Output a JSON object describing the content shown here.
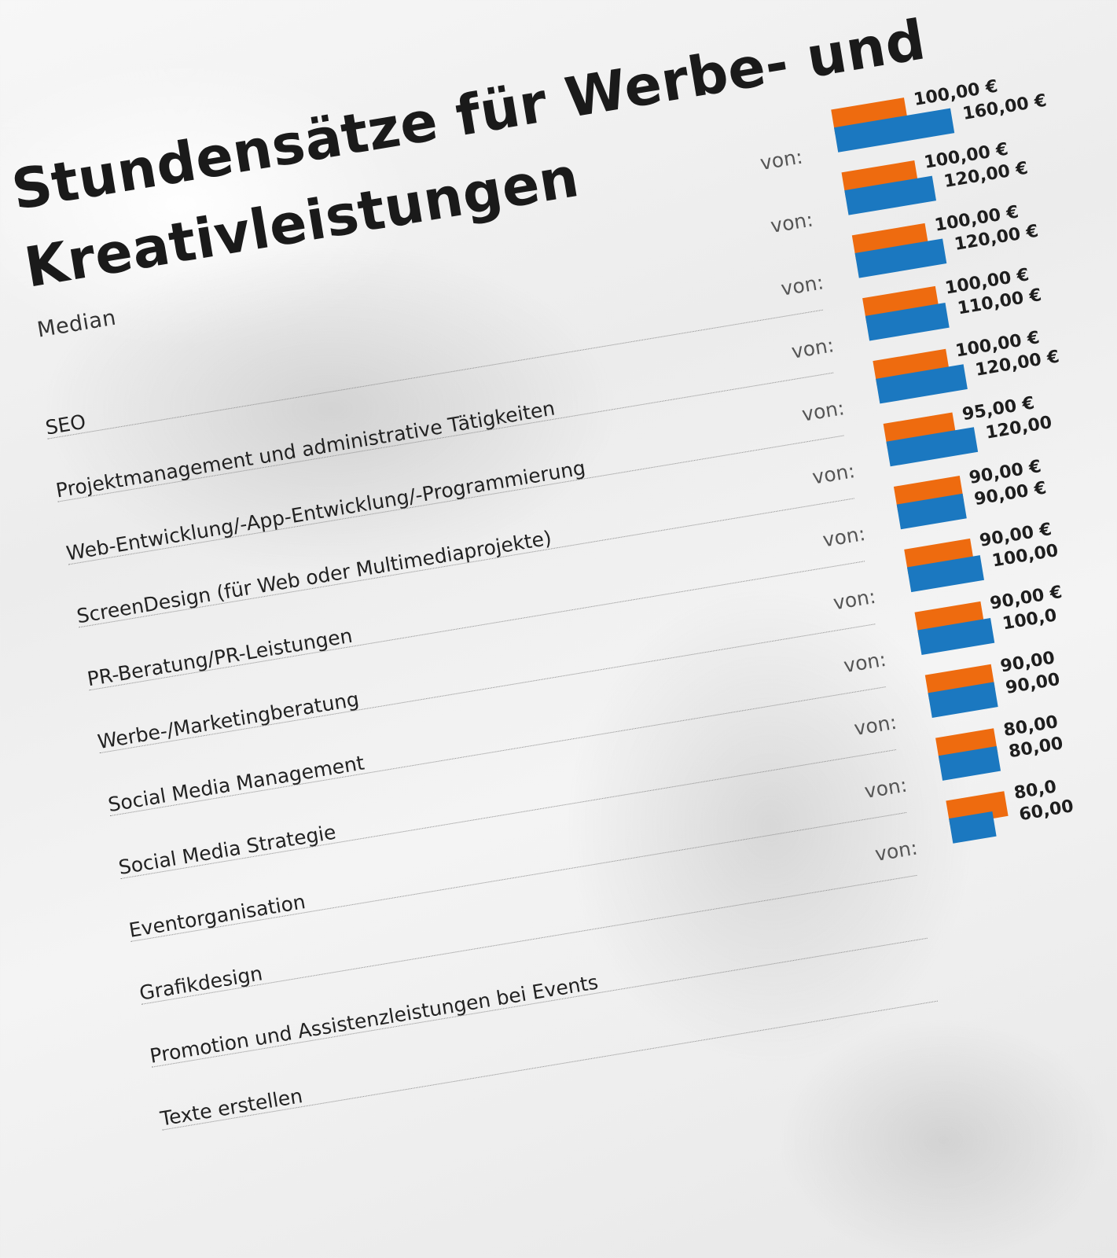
{
  "chart_data": {
    "type": "bar",
    "title": "Stundensätze für Werbe- und Kreativleistungen",
    "categories": [
      "SEO",
      "Projektmanagement und administrative Tätigkeiten",
      "Web-Entwicklung/-App-Entwicklung/-Programmierung",
      "ScreenDesign (für Web oder Multimediaprojekte)",
      "PR-Beratung/PR-Leistungen",
      "Werbe-/Marketingberatung",
      "Social Media Management",
      "Social Media Strategie",
      "Eventorganisation",
      "Grafikdesign",
      "Promotion und Assistenzleistungen bei Events",
      "Texte erstellen"
    ],
    "series": [
      {
        "name": "Median",
        "color": "#ee6b0f",
        "values": [
          100,
          100,
          100,
          100,
          100,
          95,
          90,
          90,
          90,
          90,
          80,
          80
        ],
        "labels": [
          "100,00 €",
          "100,00 €",
          "100,00 €",
          "100,00 €",
          "100,00 €",
          "95,00 €",
          "90,00 €",
          "90,00 €",
          "90,00 €",
          "90,00",
          "80,00",
          "80,0"
        ]
      },
      {
        "name": "von:",
        "color": "#1b78c0",
        "values": [
          160,
          120,
          120,
          110,
          120,
          120,
          90,
          100,
          100,
          90,
          80,
          60
        ],
        "labels": [
          "160,00 €",
          "120,00 €",
          "120,00 €",
          "110,00 €",
          "120,00 €",
          "120,00",
          "90,00 €",
          "100,00",
          "100,0",
          "90,00",
          "80,00",
          "60,00"
        ]
      }
    ],
    "row_prefix": "von:",
    "grid": false
  }
}
